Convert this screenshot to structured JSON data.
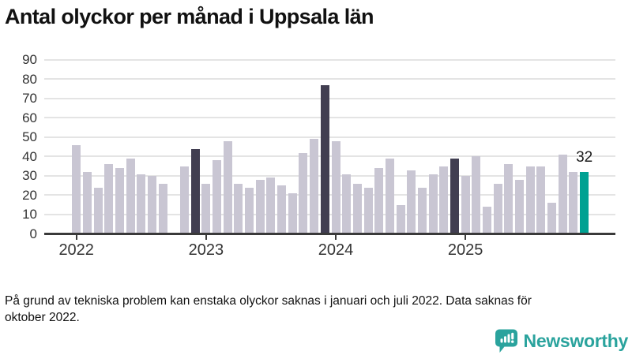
{
  "title": "Antal olyckor per månad i Uppsala län",
  "footnote": {
    "line1": "På grund av tekniska problem kan enstaka olyckor saknas i januari och juli 2022. Data saknas för",
    "line2": "oktober 2022."
  },
  "logo": {
    "text": "Newsworthy",
    "icon": "newsworthy-speech-bubble-chart-icon"
  },
  "colors": {
    "bar": "#c9c6d3",
    "bar_dark": "#413e51",
    "bar_highlight": "#00a192",
    "axis": "#3a3a3a",
    "grid": "#e4e4e4",
    "text": "#333333",
    "logo": "#2aa39d"
  },
  "chart_data": {
    "type": "bar",
    "title": "Antal olyckor per månad i Uppsala län",
    "xlabel": "",
    "ylabel": "",
    "ylim": [
      0,
      90
    ],
    "yticks": [
      0,
      10,
      20,
      30,
      40,
      50,
      60,
      70,
      80,
      90
    ],
    "grid": true,
    "legend": "none",
    "year_labels": [
      "2022",
      "2023",
      "2024",
      "2025"
    ],
    "year_start_indices": [
      0,
      12,
      24,
      36
    ],
    "annotation": {
      "text": "32",
      "month": "2025-12"
    },
    "note": "null value = missing data (oktober 2022)",
    "points": [
      {
        "month": "2022-01",
        "value": 46,
        "style": "default"
      },
      {
        "month": "2022-02",
        "value": 32,
        "style": "default"
      },
      {
        "month": "2022-03",
        "value": 24,
        "style": "default"
      },
      {
        "month": "2022-04",
        "value": 36,
        "style": "default"
      },
      {
        "month": "2022-05",
        "value": 34,
        "style": "default"
      },
      {
        "month": "2022-06",
        "value": 39,
        "style": "default"
      },
      {
        "month": "2022-07",
        "value": 31,
        "style": "default"
      },
      {
        "month": "2022-08",
        "value": 30,
        "style": "default"
      },
      {
        "month": "2022-09",
        "value": 26,
        "style": "default"
      },
      {
        "month": "2022-10",
        "value": null,
        "style": "default"
      },
      {
        "month": "2022-11",
        "value": 35,
        "style": "default"
      },
      {
        "month": "2022-12",
        "value": 44,
        "style": "dark"
      },
      {
        "month": "2023-01",
        "value": 26,
        "style": "default"
      },
      {
        "month": "2023-02",
        "value": 38,
        "style": "default"
      },
      {
        "month": "2023-03",
        "value": 48,
        "style": "default"
      },
      {
        "month": "2023-04",
        "value": 26,
        "style": "default"
      },
      {
        "month": "2023-05",
        "value": 24,
        "style": "default"
      },
      {
        "month": "2023-06",
        "value": 28,
        "style": "default"
      },
      {
        "month": "2023-07",
        "value": 29,
        "style": "default"
      },
      {
        "month": "2023-08",
        "value": 25,
        "style": "default"
      },
      {
        "month": "2023-09",
        "value": 21,
        "style": "default"
      },
      {
        "month": "2023-10",
        "value": 42,
        "style": "default"
      },
      {
        "month": "2023-11",
        "value": 49,
        "style": "default"
      },
      {
        "month": "2023-12",
        "value": 77,
        "style": "dark"
      },
      {
        "month": "2024-01",
        "value": 48,
        "style": "default"
      },
      {
        "month": "2024-02",
        "value": 31,
        "style": "default"
      },
      {
        "month": "2024-03",
        "value": 26,
        "style": "default"
      },
      {
        "month": "2024-04",
        "value": 24,
        "style": "default"
      },
      {
        "month": "2024-05",
        "value": 34,
        "style": "default"
      },
      {
        "month": "2024-06",
        "value": 39,
        "style": "default"
      },
      {
        "month": "2024-07",
        "value": 15,
        "style": "default"
      },
      {
        "month": "2024-08",
        "value": 33,
        "style": "default"
      },
      {
        "month": "2024-09",
        "value": 24,
        "style": "default"
      },
      {
        "month": "2024-10",
        "value": 31,
        "style": "default"
      },
      {
        "month": "2024-11",
        "value": 35,
        "style": "default"
      },
      {
        "month": "2024-12",
        "value": 39,
        "style": "dark"
      },
      {
        "month": "2025-01",
        "value": 30,
        "style": "default"
      },
      {
        "month": "2025-02",
        "value": 40,
        "style": "default"
      },
      {
        "month": "2025-03",
        "value": 14,
        "style": "default"
      },
      {
        "month": "2025-04",
        "value": 26,
        "style": "default"
      },
      {
        "month": "2025-05",
        "value": 36,
        "style": "default"
      },
      {
        "month": "2025-06",
        "value": 28,
        "style": "default"
      },
      {
        "month": "2025-07",
        "value": 35,
        "style": "default"
      },
      {
        "month": "2025-08",
        "value": 35,
        "style": "default"
      },
      {
        "month": "2025-09",
        "value": 16,
        "style": "default"
      },
      {
        "month": "2025-10",
        "value": 41,
        "style": "default"
      },
      {
        "month": "2025-11",
        "value": 32,
        "style": "default"
      },
      {
        "month": "2025-12",
        "value": 32,
        "style": "highlight"
      }
    ]
  }
}
